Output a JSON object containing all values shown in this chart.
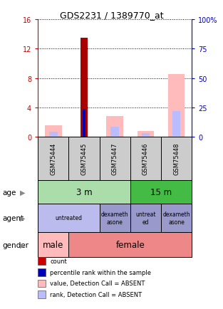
{
  "title": "GDS2231 / 1389770_at",
  "samples": [
    "GSM75444",
    "GSM75445",
    "GSM75447",
    "GSM75446",
    "GSM75448"
  ],
  "count_values": [
    0,
    13.5,
    0,
    0,
    0
  ],
  "percentile_rank_values": [
    0,
    3.8,
    0,
    0,
    0
  ],
  "value_absent": [
    1.5,
    0,
    2.8,
    0.8,
    8.5
  ],
  "rank_absent": [
    0.7,
    0,
    1.4,
    0.5,
    3.5
  ],
  "left_ylim": [
    0,
    16
  ],
  "right_ylim": [
    0,
    100
  ],
  "left_yticks": [
    0,
    4,
    8,
    12,
    16
  ],
  "right_yticks": [
    0,
    25,
    50,
    75,
    100
  ],
  "right_yticklabels": [
    "0",
    "25",
    "50",
    "75",
    "100%"
  ],
  "left_ytick_color": "#cc0000",
  "right_ytick_color": "#0000cc",
  "count_color": "#aa0000",
  "percentile_color": "#0000bb",
  "value_absent_color": "#ffbbbb",
  "rank_absent_color": "#bbbbff",
  "legend_items": [
    {
      "color": "#cc0000",
      "label": "count"
    },
    {
      "color": "#0000bb",
      "label": "percentile rank within the sample"
    },
    {
      "color": "#ffbbbb",
      "label": "value, Detection Call = ABSENT"
    },
    {
      "color": "#bbbbff",
      "label": "rank, Detection Call = ABSENT"
    }
  ],
  "background_color": "#ffffff"
}
